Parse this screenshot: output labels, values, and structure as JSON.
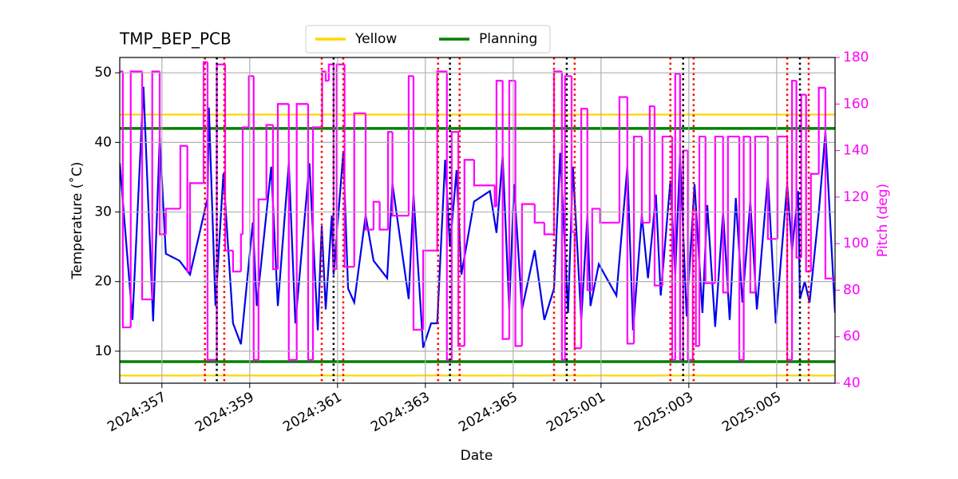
{
  "chart_data": {
    "type": "line",
    "title": "TMP_BEP_PCB",
    "xlabel": "Date",
    "ylabel": "Temperature (˚C)",
    "y2label": "Pitch (deg)",
    "xlim": [
      356.04,
      372.33
    ],
    "xticks": [
      {
        "value": 357,
        "label": "2024:357"
      },
      {
        "value": 359,
        "label": "2024:359"
      },
      {
        "value": 361,
        "label": "2024:361"
      },
      {
        "value": 363,
        "label": "2024:363"
      },
      {
        "value": 365,
        "label": "2024:365"
      },
      {
        "value": 367,
        "label": "2025:001"
      },
      {
        "value": 369,
        "label": "2025:003"
      },
      {
        "value": 371,
        "label": "2025:005"
      }
    ],
    "ylim": [
      5.4,
      52.2
    ],
    "yticks": [
      10,
      20,
      30,
      40,
      50
    ],
    "y2lim": [
      40,
      180
    ],
    "y2ticks": [
      40,
      60,
      80,
      100,
      120,
      140,
      160,
      180
    ],
    "y2color": "#ff00ff",
    "grid": true,
    "legend": "upper center",
    "limits": [
      {
        "name": "Yellow",
        "color": "#ffd700",
        "values": [
          44,
          6.5
        ]
      },
      {
        "name": "Planning",
        "color": "#008000",
        "values": [
          42,
          8.5
        ]
      }
    ],
    "vlines": [
      {
        "color": "#ff0000",
        "x": [
          357.98,
          358.42,
          360.64,
          361.13,
          363.29,
          363.78,
          365.93,
          366.4,
          368.58,
          369.11,
          371.24,
          371.73
        ]
      },
      {
        "color": "#000000",
        "x": [
          358.25,
          360.91,
          363.56,
          366.22,
          368.87,
          371.53
        ]
      }
    ],
    "series": [
      {
        "color": "#0000ee",
        "x": [
          356.04,
          356.33,
          356.58,
          356.8,
          356.95,
          357.09,
          357.4,
          357.64,
          358.04,
          358.07,
          358.22,
          358.4,
          358.62,
          358.8,
          359.07,
          359.16,
          359.49,
          359.64,
          359.89,
          360.04,
          360.36,
          360.55,
          360.64,
          360.73,
          360.87,
          360.91,
          361.13,
          361.24,
          361.38,
          361.64,
          361.82,
          362.13,
          362.25,
          362.62,
          362.73,
          362.95,
          363.13,
          363.27,
          363.45,
          363.56,
          363.71,
          363.82,
          364.11,
          364.47,
          364.62,
          364.76,
          364.91,
          365.02,
          365.2,
          365.49,
          365.71,
          365.93,
          366.07,
          366.25,
          366.36,
          366.55,
          366.69,
          366.76,
          366.95,
          367.35,
          367.6,
          367.73,
          367.93,
          368.07,
          368.25,
          368.36,
          368.58,
          368.69,
          368.8,
          368.95,
          369.13,
          369.31,
          369.42,
          369.6,
          369.78,
          369.93,
          370.07,
          370.22,
          370.4,
          370.55,
          370.8,
          370.98,
          371.24,
          371.35,
          371.49,
          371.53,
          371.64,
          371.75,
          371.96,
          372.11,
          372.33
        ],
        "values": [
          37,
          14.5,
          48,
          14.3,
          40.6,
          24,
          23,
          21,
          32,
          45,
          16.5,
          35.5,
          14,
          11,
          28.5,
          16.5,
          36.5,
          16.5,
          37,
          14,
          37,
          13,
          28,
          16,
          29.5,
          21,
          38.5,
          19,
          17,
          29.5,
          23,
          20.5,
          34,
          17.5,
          32.5,
          10.5,
          14,
          14,
          37.5,
          25,
          36,
          21,
          31.5,
          33,
          27,
          38,
          16,
          34,
          16,
          24.5,
          14.5,
          19,
          38.5,
          15.5,
          36.5,
          14.5,
          29.5,
          16.5,
          22.5,
          18,
          36.5,
          13,
          29.5,
          20.5,
          32.5,
          18,
          34.5,
          21,
          38,
          15,
          34,
          15.5,
          31,
          13.5,
          30,
          14.5,
          32,
          17,
          31.5,
          16,
          35,
          14,
          34,
          24.5,
          33,
          17.5,
          20,
          17,
          30,
          41.5,
          15.5
        ]
      },
      {
        "color": "#ff00ff",
        "axis": "y2",
        "drawstyle": "steps-post",
        "x": [
          356.04,
          356.11,
          356.29,
          356.55,
          356.78,
          356.95,
          357.09,
          357.42,
          357.58,
          357.64,
          357.95,
          358.04,
          358.25,
          358.44,
          358.62,
          358.8,
          358.84,
          358.98,
          359.09,
          359.2,
          359.38,
          359.53,
          359.64,
          359.89,
          360.07,
          360.33,
          360.44,
          360.65,
          360.73,
          360.8,
          360.91,
          360.98,
          361.16,
          361.38,
          361.64,
          361.82,
          361.96,
          362.15,
          362.25,
          362.62,
          362.73,
          362.95,
          363.27,
          363.49,
          363.6,
          363.75,
          363.89,
          364.11,
          364.58,
          364.62,
          364.76,
          364.91,
          365.05,
          365.2,
          365.49,
          365.71,
          365.93,
          366.11,
          366.18,
          366.33,
          366.4,
          366.55,
          366.69,
          366.8,
          366.98,
          367.42,
          367.6,
          367.75,
          367.93,
          368.11,
          368.22,
          368.4,
          368.62,
          368.69,
          368.8,
          368.87,
          368.98,
          369.09,
          369.16,
          369.24,
          369.38,
          369.6,
          369.78,
          369.89,
          370.15,
          370.25,
          370.4,
          370.51,
          370.8,
          371.02,
          371.24,
          371.35,
          371.45,
          371.56,
          371.67,
          371.78,
          371.96,
          372.11
        ],
        "values": [
          174,
          64,
          174,
          76,
          174,
          104,
          115,
          142,
          88,
          126,
          178,
          50,
          177,
          97,
          88,
          104,
          150,
          172,
          50,
          119,
          151,
          89,
          160,
          50,
          160,
          50,
          150,
          174,
          170,
          177,
          89,
          177,
          90,
          156,
          106,
          118,
          106,
          148,
          112,
          172,
          63,
          97,
          174,
          50,
          148,
          56,
          136,
          125,
          116,
          170,
          59,
          170,
          56,
          117,
          109,
          104,
          174,
          50,
          172,
          105,
          55,
          158,
          80,
          115,
          109,
          163,
          57,
          146,
          109,
          159,
          82,
          146,
          50,
          173,
          50,
          140,
          50,
          114,
          56,
          146,
          83,
          146,
          79,
          146,
          50,
          146,
          79,
          146,
          102,
          146,
          50,
          170,
          94,
          164,
          88,
          130,
          167,
          85
        ]
      }
    ]
  }
}
